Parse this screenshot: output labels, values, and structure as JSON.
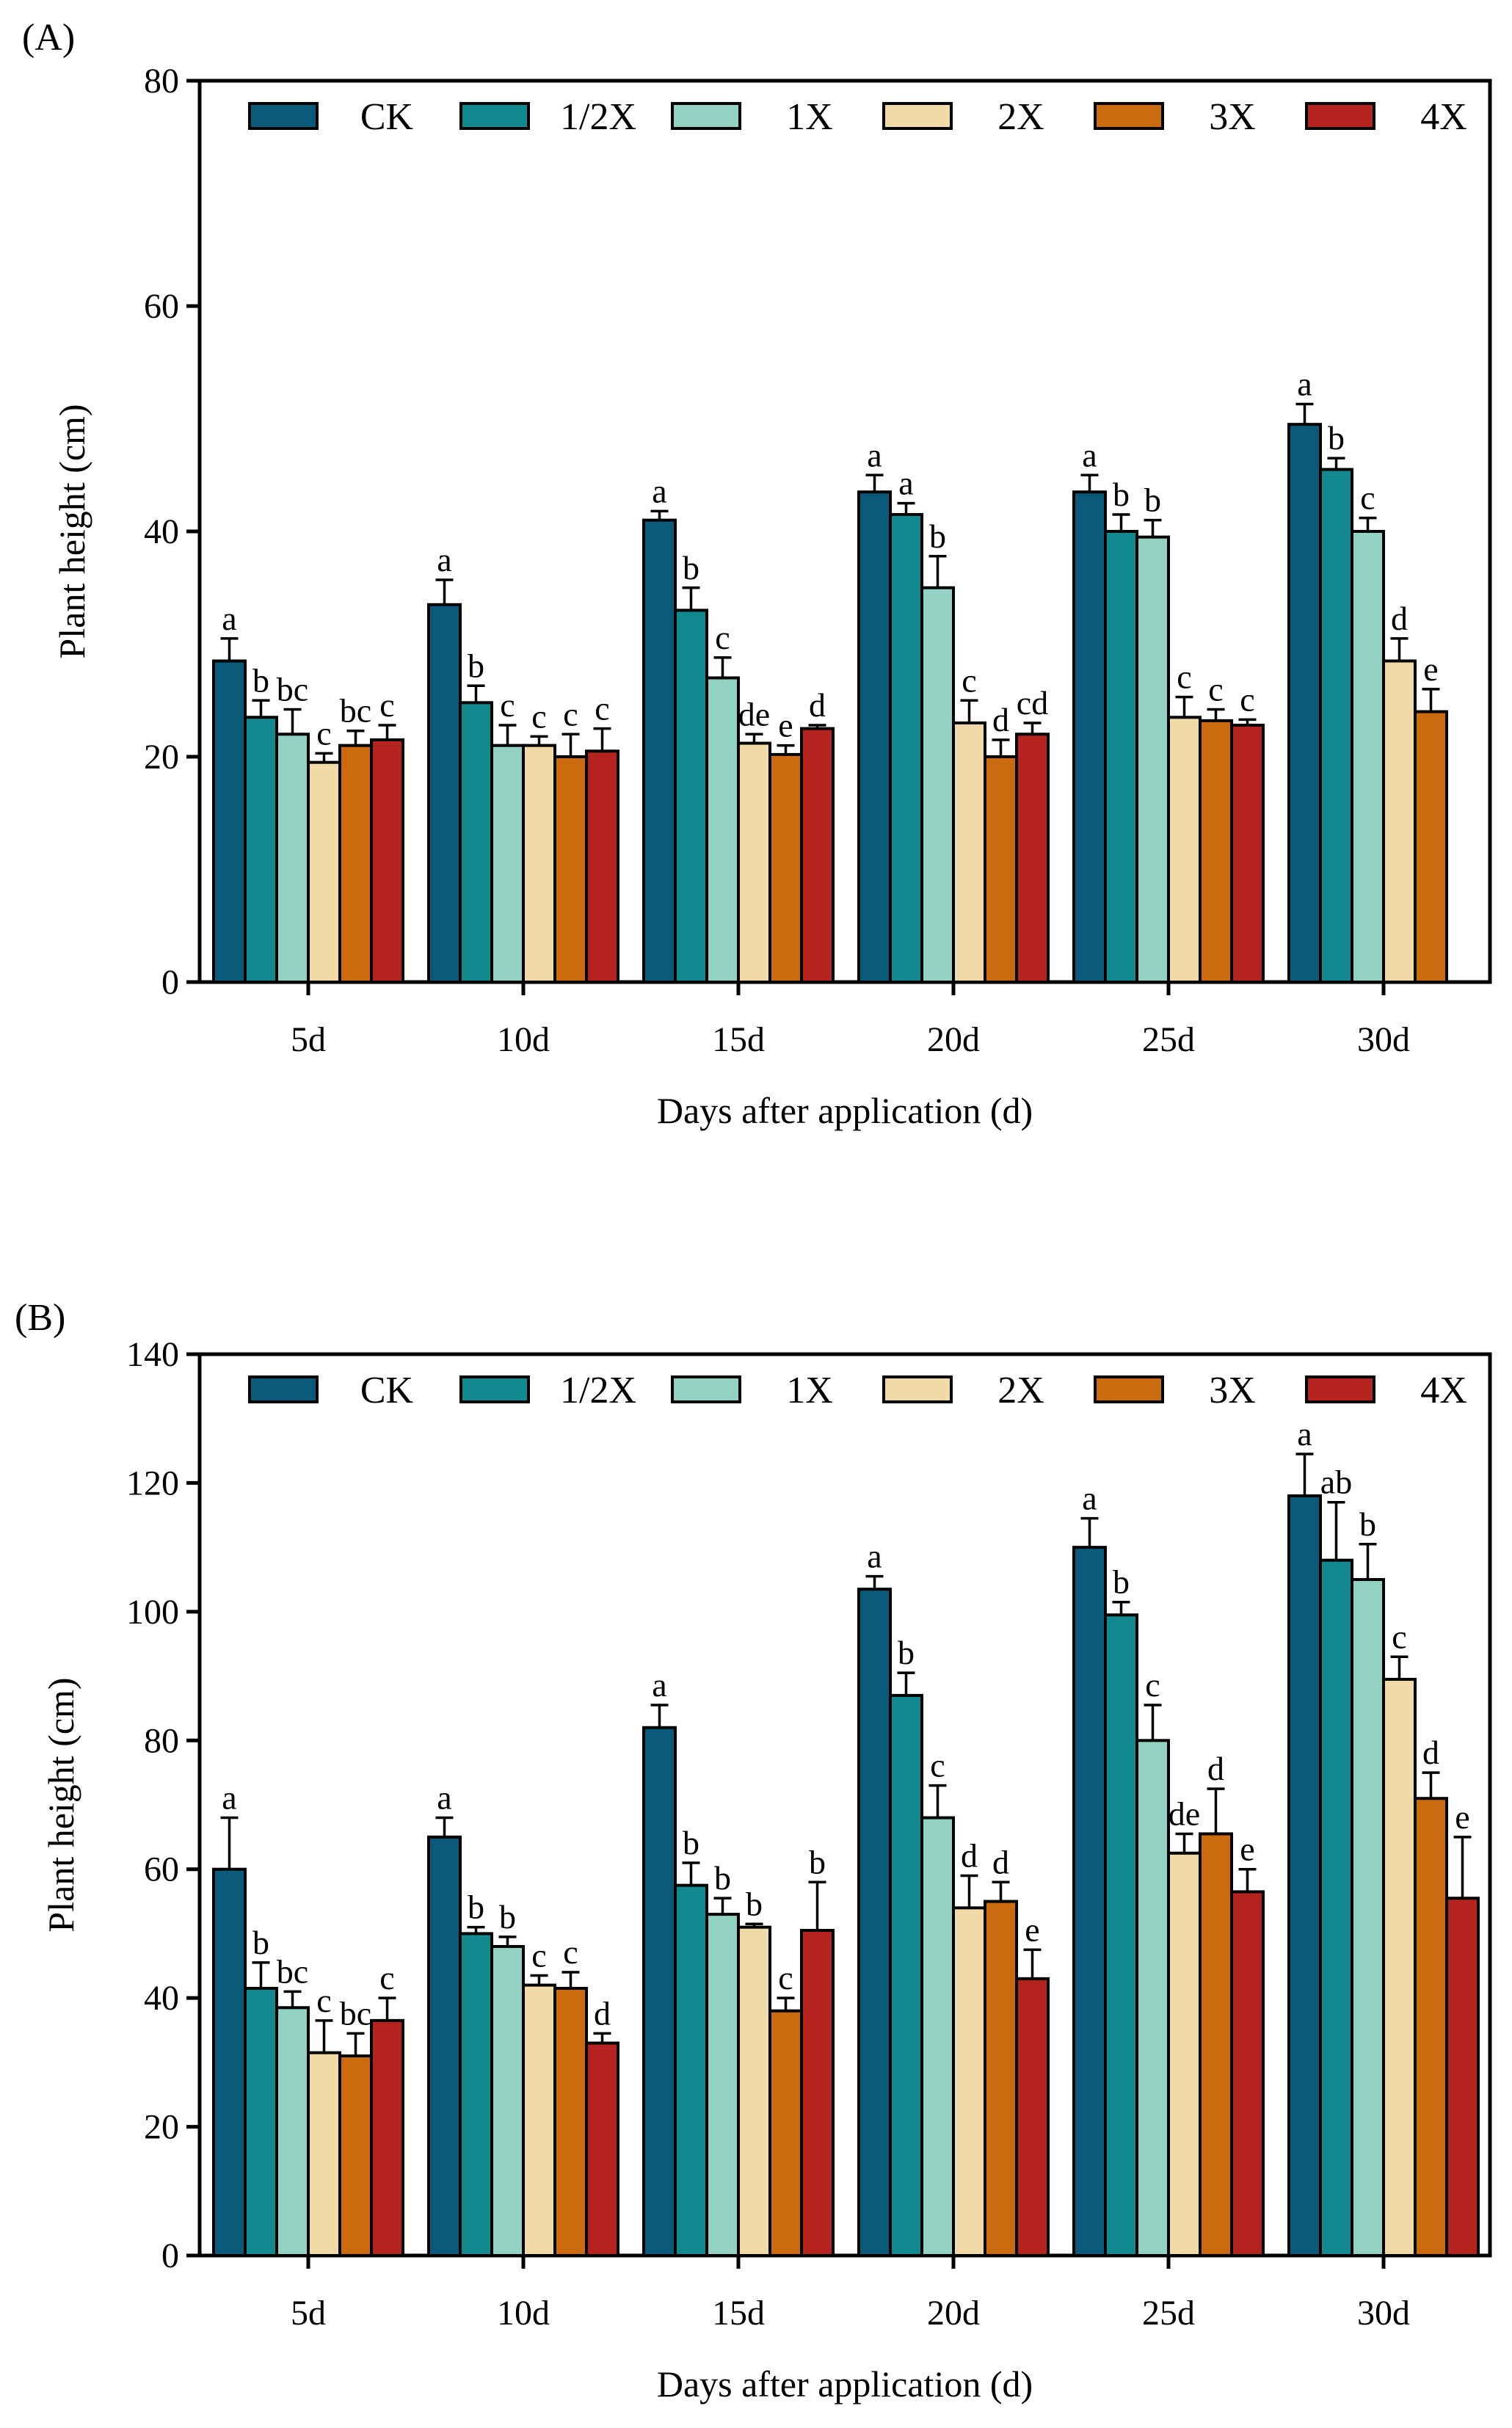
{
  "chart_data": [
    {
      "type": "bar",
      "panel_label": "(A)",
      "title": "",
      "xlabel": "Days after application (d)",
      "ylabel": "Plant height (cm)",
      "ylim": [
        0,
        80
      ],
      "yticks": [
        0,
        20,
        40,
        60,
        80
      ],
      "legend_position": "top",
      "grid": false,
      "categories": [
        "5d",
        "10d",
        "15d",
        "20d",
        "25d",
        "30d"
      ],
      "series": [
        {
          "name": "CK",
          "color": "#0b5a7a",
          "values": [
            28.5,
            33.5,
            41.0,
            43.5,
            43.5,
            49.5
          ],
          "errors": [
            2.0,
            2.2,
            0.8,
            1.5,
            1.5,
            1.8
          ],
          "letters": [
            "a",
            "a",
            "a",
            "a",
            "a",
            "a"
          ]
        },
        {
          "name": "1/2X",
          "color": "#11898f",
          "values": [
            23.5,
            24.8,
            33.0,
            41.5,
            40.0,
            45.5
          ],
          "errors": [
            1.5,
            1.5,
            2.0,
            1.0,
            1.5,
            1.0
          ],
          "letters": [
            "b",
            "b",
            "b",
            "a",
            "b",
            "b"
          ]
        },
        {
          "name": "1X",
          "color": "#93d2c2",
          "values": [
            22.0,
            21.0,
            27.0,
            35.0,
            39.5,
            40.0
          ],
          "errors": [
            2.2,
            1.8,
            1.8,
            2.8,
            1.5,
            1.2
          ],
          "letters": [
            "bc",
            "c",
            "c",
            "b",
            "b",
            "c"
          ]
        },
        {
          "name": "2X",
          "color": "#efdaa8",
          "values": [
            19.5,
            21.0,
            21.2,
            23.0,
            23.5,
            28.5
          ],
          "errors": [
            0.8,
            0.8,
            0.8,
            2.0,
            1.8,
            2.0
          ],
          "letters": [
            "c",
            "c",
            "de",
            "c",
            "c",
            "d"
          ]
        },
        {
          "name": "3X",
          "color": "#cc6a0f",
          "values": [
            21.0,
            20.0,
            20.2,
            20.0,
            23.2,
            24.0
          ],
          "errors": [
            1.3,
            2.0,
            0.8,
            1.5,
            1.0,
            2.0
          ],
          "letters": [
            "bc",
            "c",
            "e",
            "d",
            "c",
            "e"
          ]
        },
        {
          "name": "4X",
          "color": "#b4231d",
          "values": [
            21.5,
            20.5,
            22.5,
            22.0,
            22.8,
            null
          ],
          "errors": [
            1.3,
            2.0,
            0.3,
            1.0,
            0.5,
            null
          ],
          "letters": [
            "c",
            "c",
            "d",
            "cd",
            "c",
            ""
          ]
        }
      ]
    },
    {
      "type": "bar",
      "panel_label": "(B)",
      "title": "",
      "xlabel": "Days after application (d)",
      "ylabel": "Plant height (cm)",
      "ylim": [
        0,
        140
      ],
      "yticks": [
        0,
        20,
        40,
        60,
        80,
        100,
        120,
        140
      ],
      "legend_position": "top",
      "grid": false,
      "categories": [
        "5d",
        "10d",
        "15d",
        "20d",
        "25d",
        "30d"
      ],
      "series": [
        {
          "name": "CK",
          "color": "#0b5a7a",
          "values": [
            60,
            65,
            82,
            103.5,
            110,
            118
          ],
          "errors": [
            8.0,
            3.0,
            3.5,
            2.0,
            4.5,
            6.5
          ],
          "letters": [
            "a",
            "a",
            "a",
            "a",
            "a",
            "a"
          ]
        },
        {
          "name": "1/2X",
          "color": "#11898f",
          "values": [
            41.5,
            50,
            57.5,
            87,
            99.5,
            108
          ],
          "errors": [
            4.0,
            1.0,
            3.5,
            3.5,
            2.0,
            9.0
          ],
          "letters": [
            "b",
            "b",
            "b",
            "b",
            "b",
            "ab"
          ]
        },
        {
          "name": "1X",
          "color": "#93d2c2",
          "values": [
            38.5,
            48,
            53,
            68,
            80,
            105
          ],
          "errors": [
            2.5,
            1.5,
            2.5,
            5.0,
            5.5,
            5.5
          ],
          "letters": [
            "bc",
            "b",
            "b",
            "c",
            "c",
            "b"
          ]
        },
        {
          "name": "2X",
          "color": "#efdaa8",
          "values": [
            31.5,
            42,
            51,
            54,
            62.5,
            89.5
          ],
          "errors": [
            5.0,
            1.5,
            0.5,
            5.0,
            3.0,
            3.5
          ],
          "letters": [
            "c",
            "c",
            "b",
            "d",
            "de",
            "c"
          ]
        },
        {
          "name": "3X",
          "color": "#cc6a0f",
          "values": [
            31,
            41.5,
            38,
            55,
            65.5,
            71
          ],
          "errors": [
            3.5,
            2.5,
            2.0,
            3.0,
            7.0,
            4.0
          ],
          "letters": [
            "bc",
            "c",
            "c",
            "d",
            "d",
            "d"
          ]
        },
        {
          "name": "4X",
          "color": "#b4231d",
          "values": [
            36.5,
            33,
            50.5,
            43,
            56.5,
            55.5
          ],
          "errors": [
            3.5,
            1.5,
            7.5,
            4.5,
            3.5,
            9.5
          ],
          "letters": [
            "c",
            "d",
            "b",
            "e",
            "e",
            "e"
          ]
        }
      ]
    }
  ]
}
